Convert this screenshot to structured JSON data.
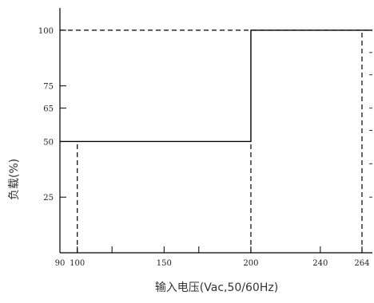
{
  "chart_data": {
    "type": "line",
    "title": "",
    "xlabel": "输入电压(Vac,50/60Hz)",
    "ylabel": "负载(%)",
    "xlim": [
      90,
      270
    ],
    "ylim": [
      0,
      110
    ],
    "x_ticks": [
      90,
      100,
      120,
      150,
      170,
      200,
      240,
      264
    ],
    "x_tick_labels": [
      "90",
      "100",
      "",
      "150",
      "",
      "200",
      "240",
      "264"
    ],
    "y_ticks": [
      25,
      50,
      65,
      75,
      100
    ],
    "y_tick_labels": [
      "25",
      "50",
      "65",
      "75",
      "100"
    ],
    "right_minor_y_ticks": [
      25,
      40,
      55,
      65,
      80,
      90
    ],
    "grid": false,
    "series": [
      {
        "style": "solid",
        "x": [
          90,
          200,
          200,
          270
        ],
        "y": [
          50,
          50,
          100,
          100
        ]
      }
    ],
    "reference_lines": [
      {
        "style": "dashed",
        "x": [
          100,
          100
        ],
        "y": [
          0,
          50
        ]
      },
      {
        "style": "dashed",
        "x": [
          200,
          200
        ],
        "y": [
          0,
          50
        ]
      },
      {
        "style": "dashed",
        "x": [
          264,
          264
        ],
        "y": [
          0,
          100
        ]
      },
      {
        "style": "dashed",
        "x": [
          90,
          270
        ],
        "y": [
          100,
          100
        ]
      }
    ]
  }
}
